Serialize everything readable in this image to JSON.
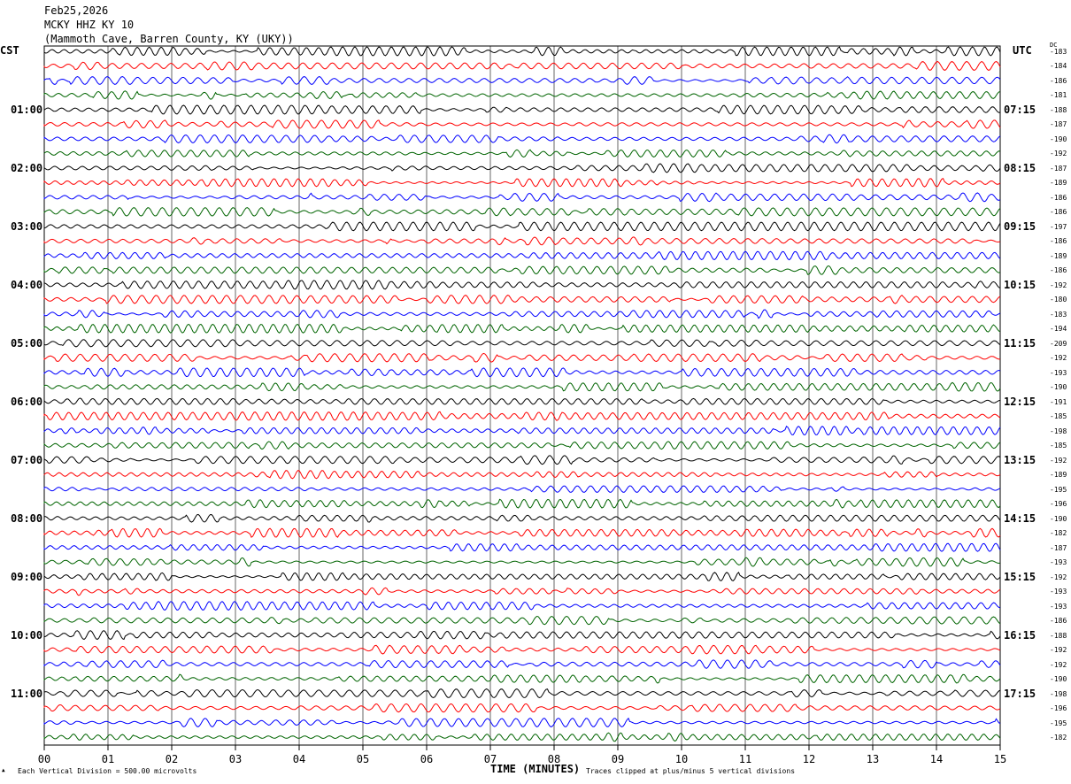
{
  "header": {
    "date": "Feb25,2026",
    "station": "MCKY HHZ KY 10",
    "location": "(Mammoth Cave, Barren County, KY (UKY))"
  },
  "left_tz": "CST",
  "right_tz": "UTC",
  "dc_label": "DC",
  "footer": {
    "scale": "Each Vertical Division =  500.00 microvolts",
    "xlabel": "TIME (MINUTES)",
    "clip_note": "Traces clipped at plus/minus 5 vertical divisions"
  },
  "chart_data": {
    "type": "line",
    "title": "MCKY HHZ KY 10",
    "xlabel": "TIME (MINUTES)",
    "xlim": [
      0,
      15
    ],
    "x_ticks": [
      "00",
      "01",
      "02",
      "03",
      "04",
      "05",
      "06",
      "07",
      "08",
      "09",
      "10",
      "11",
      "12",
      "13",
      "14",
      "15"
    ],
    "grid": true,
    "trace_colors": [
      "#000000",
      "#ff0000",
      "#0000ff",
      "#006400"
    ],
    "traces_per_hour": 4,
    "left_hour_labels": [
      "",
      "01:00",
      "02:00",
      "03:00",
      "04:00",
      "05:00",
      "06:00",
      "07:00",
      "08:00",
      "09:00",
      "10:00",
      "11:00"
    ],
    "right_hour_labels": [
      "",
      "07:15",
      "08:15",
      "09:15",
      "10:15",
      "11:15",
      "12:15",
      "13:15",
      "14:15",
      "15:15",
      "16:15",
      "17:15"
    ],
    "dc_offsets": [
      "-183",
      "-184",
      "-186",
      "-181",
      "-188",
      "-187",
      "-190",
      "-192",
      "-187",
      "-189",
      "-186",
      "-186",
      "-197",
      "-186",
      "-189",
      "-186",
      "-192",
      "-180",
      "-183",
      "-194",
      "-209",
      "-192",
      "-193",
      "-190",
      "-191",
      "-185",
      "-198",
      "-185",
      "-192",
      "-189",
      "-195",
      "-196",
      "-190",
      "-182",
      "-187",
      "-193",
      "-192",
      "-193",
      "-193",
      "-186",
      "-188",
      "-192",
      "-192",
      "-190",
      "-198",
      "-196",
      "-195",
      "-182"
    ]
  }
}
